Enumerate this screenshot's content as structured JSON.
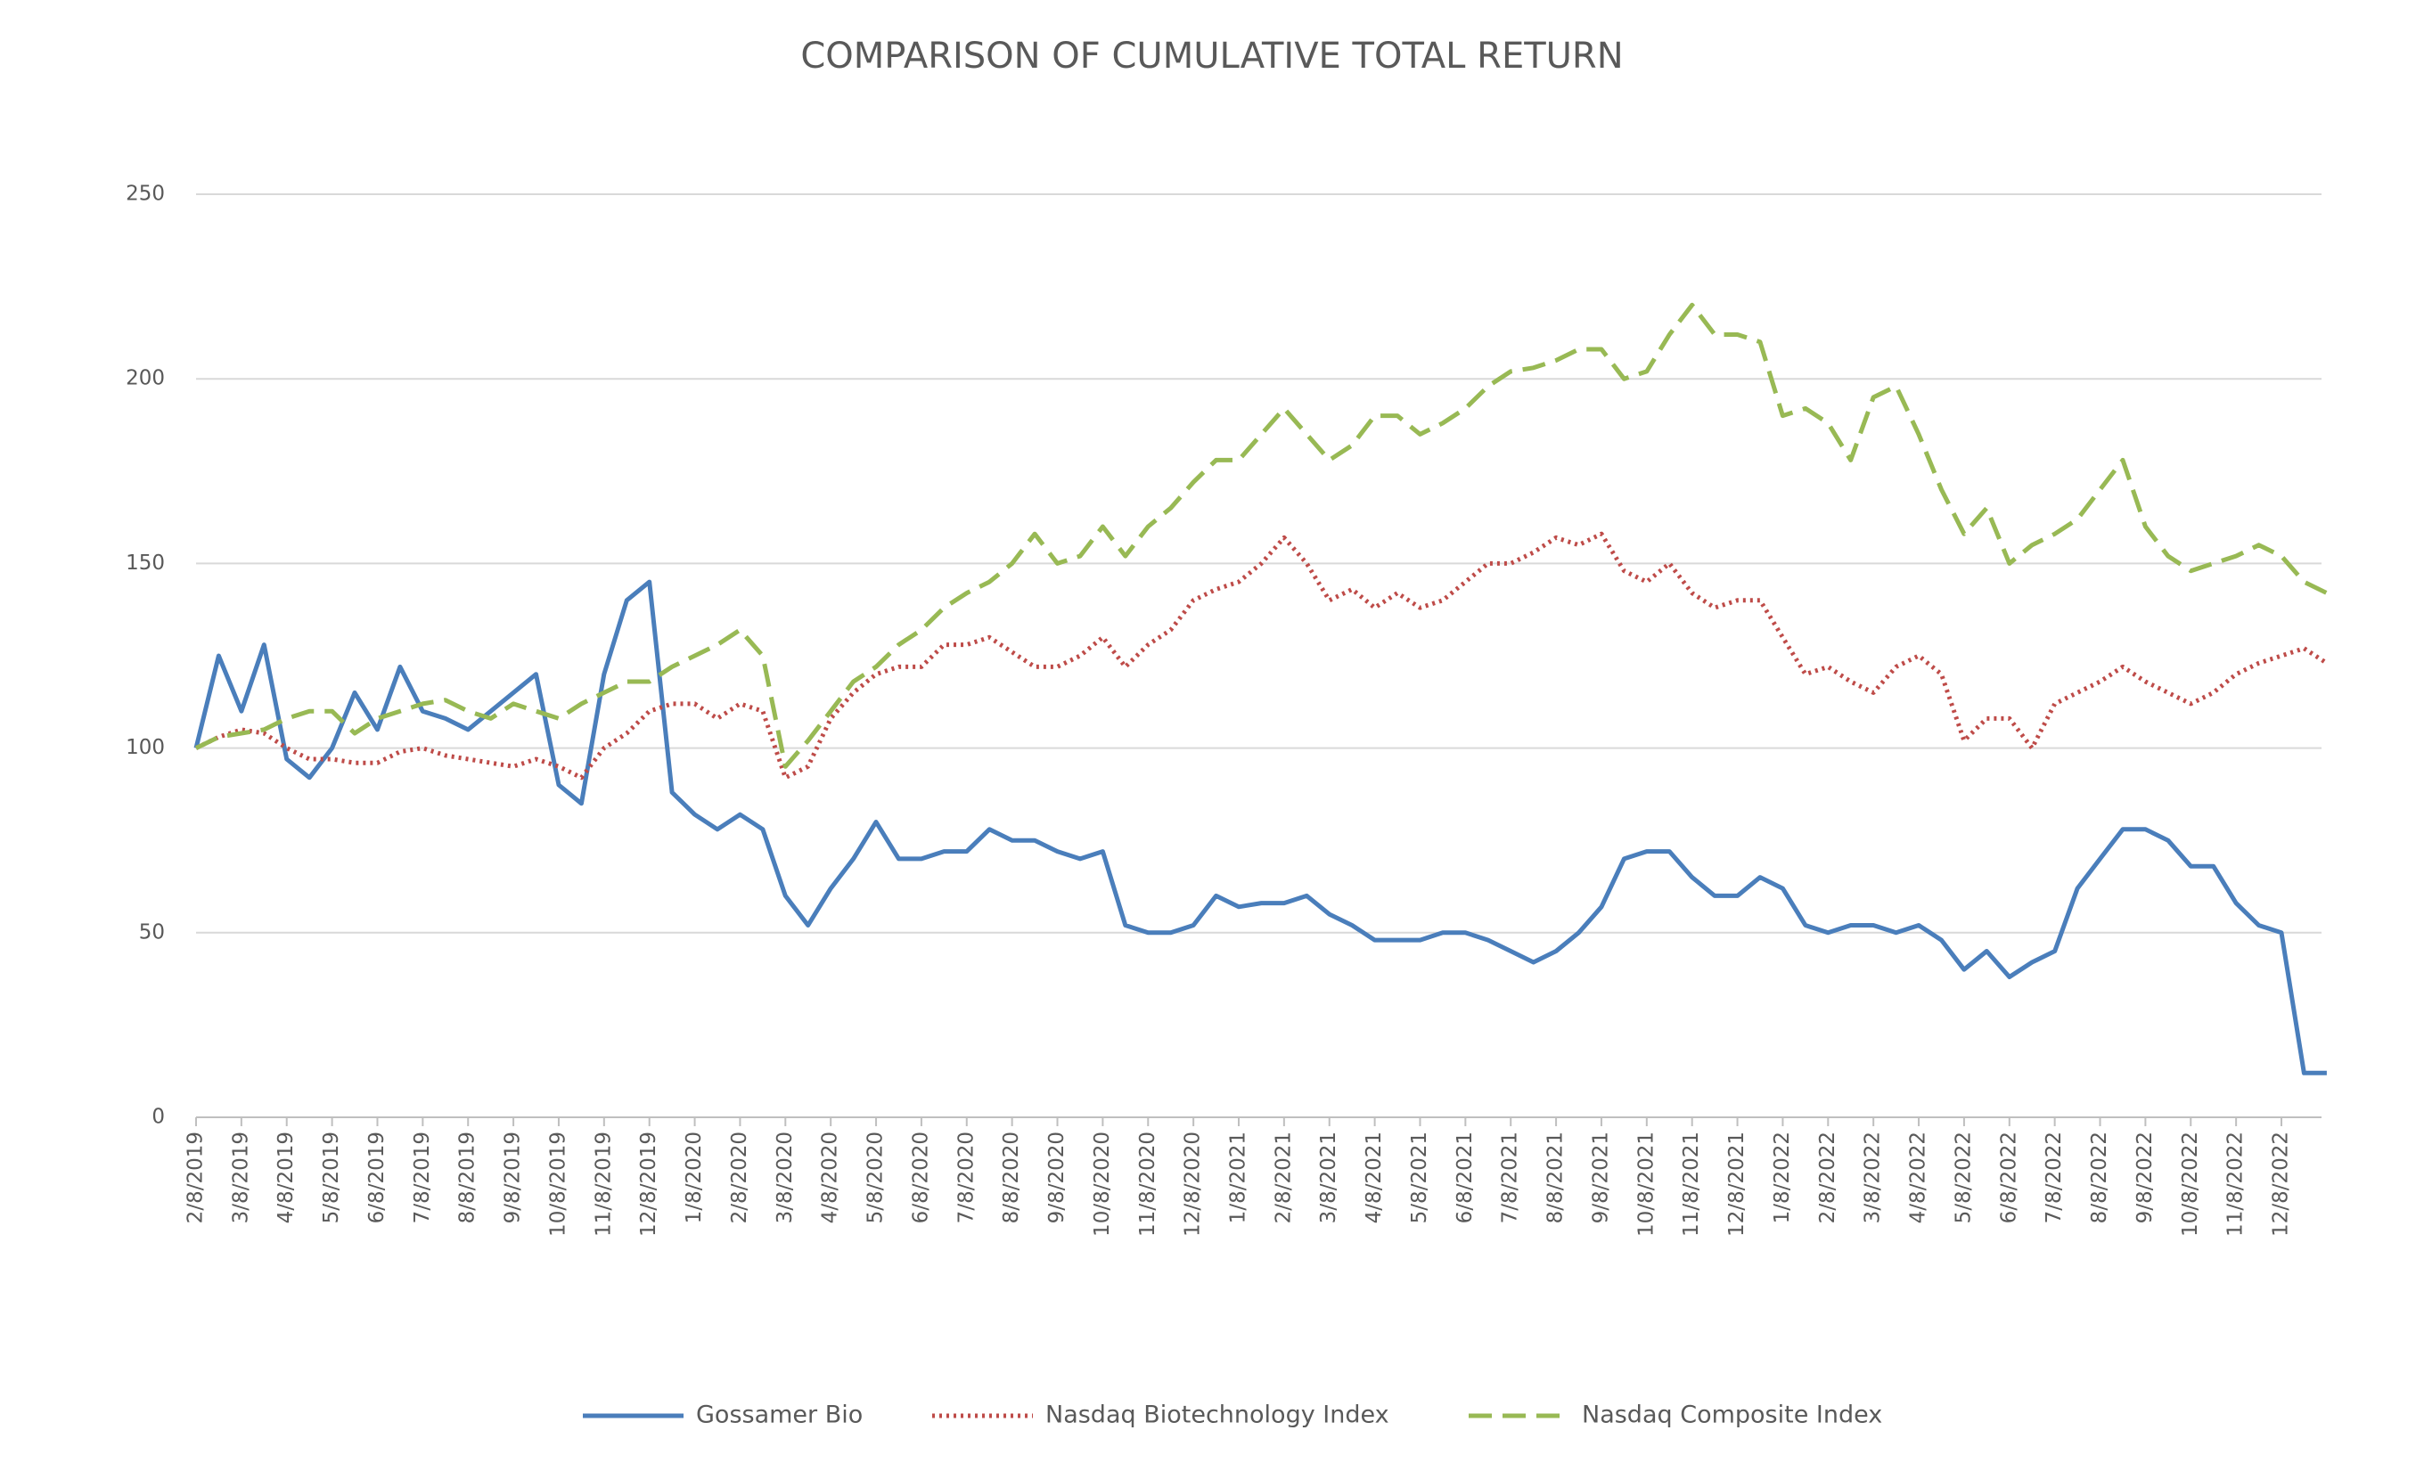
{
  "chart_data": {
    "type": "line",
    "title": "COMPARISON OF CUMULATIVE TOTAL RETURN",
    "categories": [
      "2/8/2019",
      null,
      "3/8/2019",
      null,
      "4/8/2019",
      null,
      "5/8/2019",
      null,
      "6/8/2019",
      null,
      "7/8/2019",
      null,
      "8/8/2019",
      null,
      "9/8/2019",
      null,
      "10/8/2019",
      null,
      "11/8/2019",
      null,
      "12/8/2019",
      null,
      "1/8/2020",
      null,
      "2/8/2020",
      null,
      "3/8/2020",
      null,
      "4/8/2020",
      null,
      "5/8/2020",
      null,
      "6/8/2020",
      null,
      "7/8/2020",
      null,
      "8/8/2020",
      null,
      "9/8/2020",
      null,
      "10/8/2020",
      null,
      "11/8/2020",
      null,
      "12/8/2020",
      null,
      "1/8/2021",
      null,
      "2/8/2021",
      null,
      "3/8/2021",
      null,
      "4/8/2021",
      null,
      "5/8/2021",
      null,
      "6/8/2021",
      null,
      "7/8/2021",
      null,
      "8/8/2021",
      null,
      "9/8/2021",
      null,
      "10/8/2021",
      null,
      "11/8/2021",
      null,
      "12/8/2021",
      null,
      "1/8/2022",
      null,
      "2/8/2022",
      null,
      "3/8/2022",
      null,
      "4/8/2022",
      null,
      "5/8/2022",
      null,
      "6/8/2022",
      null,
      "7/8/2022",
      null,
      "8/8/2022",
      null,
      "9/8/2022",
      null,
      "10/8/2022",
      null,
      "11/8/2022",
      null,
      "12/8/2022",
      null,
      null
    ],
    "series": [
      {
        "name": "Gossamer Bio",
        "color": "#4a7ebb",
        "style": "solid",
        "values": [
          100,
          125,
          110,
          128,
          97,
          92,
          100,
          115,
          105,
          122,
          110,
          108,
          105,
          110,
          115,
          120,
          90,
          85,
          120,
          140,
          145,
          88,
          82,
          78,
          82,
          78,
          60,
          52,
          62,
          70,
          80,
          70,
          70,
          72,
          72,
          78,
          75,
          75,
          72,
          70,
          72,
          52,
          50,
          50,
          52,
          60,
          57,
          58,
          58,
          60,
          55,
          52,
          48,
          48,
          48,
          50,
          50,
          48,
          45,
          42,
          45,
          50,
          57,
          70,
          72,
          72,
          65,
          60,
          60,
          65,
          62,
          52,
          50,
          52,
          52,
          50,
          52,
          48,
          40,
          45,
          38,
          42,
          45,
          62,
          70,
          78,
          78,
          75,
          68,
          68,
          58,
          52,
          50,
          12,
          12
        ]
      },
      {
        "name": "Nasdaq Biotechnology Index",
        "color": "#be4b48",
        "style": "dotted",
        "values": [
          100,
          103,
          105,
          104,
          100,
          97,
          97,
          96,
          96,
          99,
          100,
          98,
          97,
          96,
          95,
          97,
          95,
          92,
          100,
          104,
          110,
          112,
          112,
          108,
          112,
          110,
          92,
          95,
          108,
          115,
          120,
          122,
          122,
          128,
          128,
          130,
          126,
          122,
          122,
          125,
          130,
          122,
          128,
          132,
          140,
          143,
          145,
          150,
          157,
          150,
          140,
          143,
          138,
          142,
          138,
          140,
          145,
          150,
          150,
          153,
          157,
          155,
          158,
          148,
          145,
          150,
          142,
          138,
          140,
          140,
          130,
          120,
          122,
          118,
          115,
          122,
          125,
          120,
          102,
          108,
          108,
          100,
          112,
          115,
          118,
          122,
          118,
          115,
          112,
          115,
          120,
          123,
          125,
          127,
          123
        ]
      },
      {
        "name": "Nasdaq Composite Index",
        "color": "#98b954",
        "style": "dashed",
        "values": [
          100,
          103,
          104,
          105,
          108,
          110,
          110,
          104,
          108,
          110,
          112,
          113,
          110,
          108,
          112,
          110,
          108,
          112,
          115,
          118,
          118,
          122,
          125,
          128,
          132,
          125,
          95,
          102,
          110,
          118,
          122,
          128,
          132,
          138,
          142,
          145,
          150,
          158,
          150,
          152,
          160,
          152,
          160,
          165,
          172,
          178,
          178,
          185,
          192,
          185,
          178,
          182,
          190,
          190,
          185,
          188,
          192,
          198,
          202,
          203,
          205,
          208,
          208,
          200,
          202,
          212,
          220,
          212,
          212,
          210,
          190,
          192,
          188,
          178,
          195,
          198,
          185,
          170,
          158,
          165,
          150,
          155,
          158,
          162,
          170,
          178,
          160,
          152,
          148,
          150,
          152,
          155,
          152,
          145,
          142
        ]
      }
    ],
    "ylim": [
      0,
      250
    ],
    "yticks": [
      0,
      50,
      100,
      150,
      200,
      250
    ],
    "grid": true,
    "legend": "bottom"
  }
}
